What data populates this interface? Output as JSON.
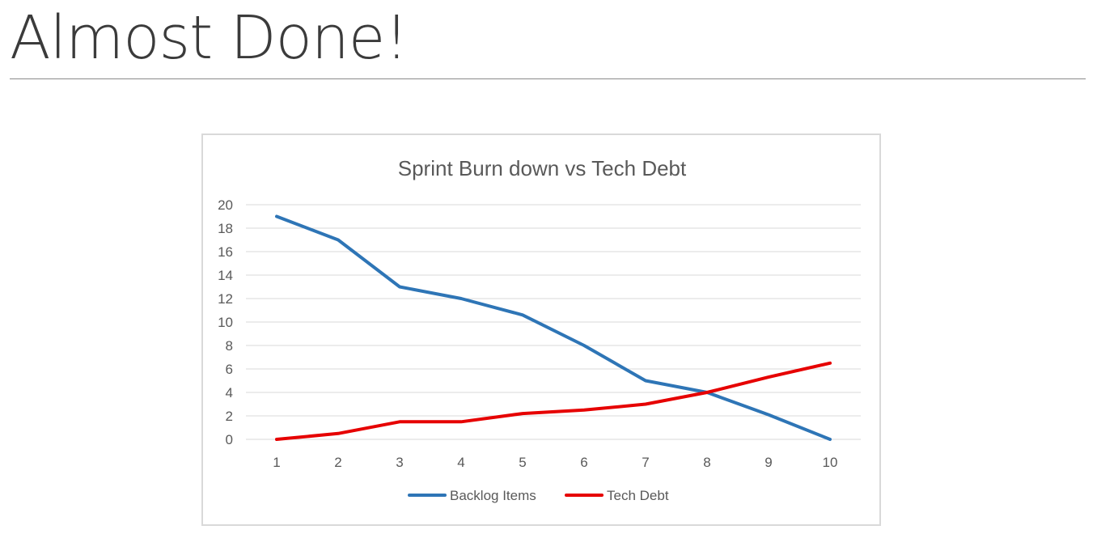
{
  "page": {
    "title": "Almost Done!"
  },
  "chart_data": {
    "type": "line",
    "title": "Sprint Burn down vs Tech Debt",
    "xlabel": "",
    "ylabel": "",
    "x": [
      1,
      2,
      3,
      4,
      5,
      6,
      7,
      8,
      9,
      10
    ],
    "ylim": [
      0,
      20
    ],
    "yticks": [
      0,
      2,
      4,
      6,
      8,
      10,
      12,
      14,
      16,
      18,
      20
    ],
    "grid": true,
    "legend": "bottom",
    "series": [
      {
        "name": "Backlog Items",
        "color": "#2e75b6",
        "values": [
          19,
          17,
          13,
          12,
          10.6,
          8,
          5,
          4,
          2.1,
          0
        ]
      },
      {
        "name": "Tech Debt",
        "color": "#e60000",
        "values": [
          0,
          0.5,
          1.5,
          1.5,
          2.2,
          2.5,
          3,
          4,
          5.3,
          6.5
        ]
      }
    ]
  }
}
